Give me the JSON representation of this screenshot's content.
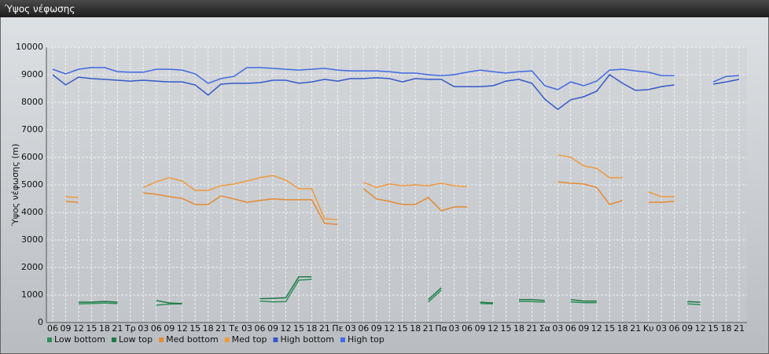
{
  "chart_data": {
    "type": "line",
    "title": "Ύψος νέφωσης",
    "y_label": "Ύψος νέφωσης (m)",
    "categories": [
      "06",
      "09",
      "12",
      "15",
      "18",
      "21",
      "Τρ",
      "03",
      "06",
      "09",
      "12",
      "15",
      "18",
      "21",
      "Τε",
      "03",
      "06",
      "09",
      "12",
      "15",
      "18",
      "21",
      "Πε",
      "03",
      "06",
      "09",
      "12",
      "15",
      "18",
      "21",
      "Πα",
      "03",
      "06",
      "09",
      "12",
      "15",
      "18",
      "21",
      "Σα",
      "03",
      "06",
      "09",
      "12",
      "15",
      "18",
      "21",
      "Κυ",
      "03",
      "06",
      "09",
      "12",
      "15",
      "18",
      "21"
    ],
    "ylim": [
      0,
      10000
    ],
    "yticks": [
      0,
      1000,
      2000,
      3000,
      4000,
      5000,
      6000,
      7000,
      8000,
      9000,
      10000
    ],
    "grid": true,
    "legend": "bottom",
    "series": [
      {
        "name": "Low bottom",
        "color": "#2f8f5a",
        "values": [
          null,
          null,
          680,
          690,
          710,
          690,
          null,
          null,
          630,
          670,
          680,
          null,
          null,
          null,
          null,
          null,
          780,
          750,
          760,
          1540,
          1570,
          null,
          null,
          null,
          null,
          null,
          null,
          null,
          null,
          750,
          1170,
          null,
          null,
          690,
          680,
          null,
          770,
          760,
          740,
          null,
          750,
          720,
          720,
          null,
          null,
          null,
          null,
          null,
          null,
          680,
          650,
          null,
          null,
          null
        ]
      },
      {
        "name": "Low top",
        "color": "#1f7a48",
        "values": [
          null,
          null,
          740,
          740,
          770,
          740,
          null,
          null,
          800,
          710,
          690,
          null,
          null,
          null,
          null,
          null,
          870,
          880,
          900,
          1660,
          1660,
          null,
          null,
          null,
          null,
          null,
          null,
          null,
          null,
          830,
          1260,
          null,
          null,
          740,
          710,
          null,
          830,
          830,
          800,
          null,
          830,
          780,
          780,
          null,
          null,
          null,
          null,
          null,
          null,
          760,
          740,
          null,
          null,
          null
        ]
      },
      {
        "name": "Med bottom",
        "color": "#e58a32",
        "values": [
          null,
          4400,
          4370,
          null,
          null,
          null,
          null,
          4710,
          4660,
          4570,
          4510,
          4290,
          4290,
          4600,
          4490,
          4370,
          4430,
          4490,
          4460,
          4460,
          4460,
          3600,
          3570,
          null,
          4860,
          4490,
          4400,
          4290,
          4290,
          4540,
          4060,
          4200,
          4200,
          null,
          null,
          null,
          null,
          null,
          null,
          5110,
          5060,
          5030,
          4910,
          4290,
          4430,
          null,
          4370,
          4370,
          4400,
          null,
          null,
          null,
          null,
          null
        ]
      },
      {
        "name": "Med top",
        "color": "#f09a3e",
        "values": [
          null,
          4570,
          4540,
          null,
          null,
          null,
          null,
          4910,
          5110,
          5260,
          5140,
          4800,
          4800,
          4970,
          5030,
          5140,
          5260,
          5340,
          5170,
          4860,
          4860,
          3770,
          3740,
          null,
          5090,
          4910,
          5030,
          4970,
          5000,
          4970,
          5060,
          4970,
          4940,
          null,
          null,
          null,
          null,
          null,
          null,
          6090,
          6000,
          5690,
          5600,
          5260,
          5260,
          null,
          4740,
          4570,
          4570,
          null,
          null,
          null,
          null,
          null
        ]
      },
      {
        "name": "High bottom",
        "color": "#3558c8",
        "values": [
          9000,
          8630,
          8910,
          8860,
          8830,
          8800,
          8770,
          8800,
          8770,
          8740,
          8740,
          8630,
          8260,
          8660,
          8690,
          8690,
          8710,
          8800,
          8800,
          8690,
          8740,
          8830,
          8770,
          8860,
          8860,
          8890,
          8860,
          8740,
          8860,
          8830,
          8830,
          8570,
          8570,
          8570,
          8600,
          8770,
          8830,
          8690,
          8110,
          7740,
          8090,
          8200,
          8400,
          9000,
          8690,
          8430,
          8460,
          8570,
          8630,
          null,
          null,
          8660,
          8740,
          8830
        ]
      },
      {
        "name": "High top",
        "color": "#4169e1",
        "values": [
          9200,
          9030,
          9200,
          9260,
          9260,
          9110,
          9090,
          9090,
          9200,
          9200,
          9170,
          9030,
          8690,
          8860,
          8940,
          9260,
          9260,
          9230,
          9200,
          9170,
          9200,
          9230,
          9170,
          9140,
          9140,
          9140,
          9110,
          9060,
          9060,
          9000,
          8970,
          9000,
          9090,
          9170,
          9110,
          9060,
          9110,
          9140,
          8600,
          8460,
          8740,
          8600,
          8770,
          9170,
          9200,
          9140,
          9090,
          8970,
          8970,
          null,
          null,
          8740,
          8940,
          8970
        ]
      }
    ]
  }
}
